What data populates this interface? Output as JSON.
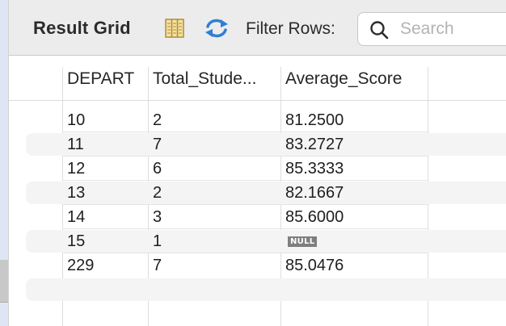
{
  "toolbar": {
    "title": "Result Grid",
    "columns_icon": "column-toggle-icon",
    "refresh_icon": "refresh-icon",
    "filter_label": "Filter Rows:",
    "search_icon": "search-icon",
    "search_placeholder": "Search",
    "search_value": ""
  },
  "grid": {
    "columns": [
      "DEPART",
      "Total_Stude...",
      "Average_Score"
    ],
    "rows": [
      {
        "depart": "10",
        "total": "2",
        "avg": "81.2500"
      },
      {
        "depart": "11",
        "total": "7",
        "avg": "83.2727"
      },
      {
        "depart": "12",
        "total": "6",
        "avg": "85.3333"
      },
      {
        "depart": "13",
        "total": "2",
        "avg": "82.1667"
      },
      {
        "depart": "14",
        "total": "3",
        "avg": "85.6000"
      },
      {
        "depart": "15",
        "total": "1",
        "avg": "NULL"
      },
      {
        "depart": "229",
        "total": "7",
        "avg": "85.0476"
      }
    ]
  },
  "colors": {
    "toolbar_bg": "#ececec",
    "stripe": "#f4f4f4",
    "null_badge": "#7e7e7e",
    "refresh_icon": "#2f7fd6"
  }
}
